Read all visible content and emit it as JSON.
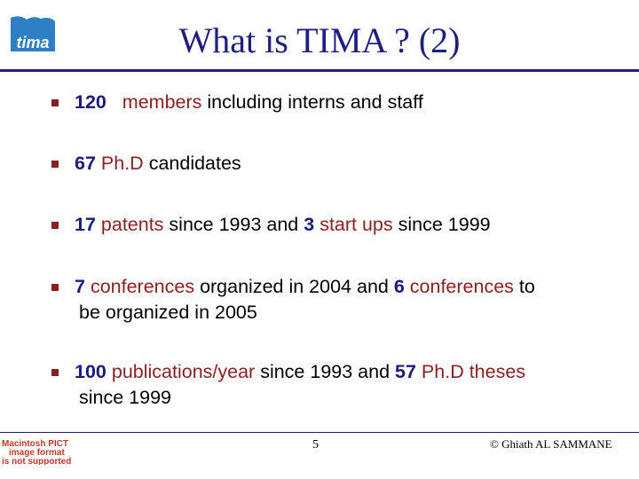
{
  "slide": {
    "title": "What is TIMA ? (2)",
    "logo_text": "tima",
    "bullets": [
      {
        "num": "120",
        "rest_a": "members",
        "rest_b": " including interns and staff"
      },
      {
        "num": "67",
        "rest_a": "Ph.D",
        "rest_b": " candidates"
      },
      {
        "num1": "17",
        "txt1": "patents",
        "txt2": " since 1993 and ",
        "num2": "3",
        "txt3": "start ups",
        "txt4": " since 1999"
      },
      {
        "num1": "7",
        "txt1": "conferences",
        "txt2": " organized in 2004 and ",
        "num2": "6",
        "txt3": "conferences",
        "txt4": " to",
        "line2": "be organized in 2005"
      },
      {
        "num1": "100",
        "txt1": "publications/year",
        "txt2": " since 1993 and ",
        "num2": "57",
        "txt3": "Ph.D theses",
        "line2": "since 1999"
      }
    ]
  },
  "footer": {
    "pict_line1": "Macintosh PICT",
    "pict_line2": "image format",
    "pict_line3": "is not supported",
    "page_number": "5",
    "copyright": "© Ghiath AL SAMMANE"
  },
  "colors": {
    "title": "#1f1f80",
    "accent_red": "#8b1f1f",
    "number_blue": "#1a1a80",
    "logo_blue": "#2f7fc4"
  }
}
